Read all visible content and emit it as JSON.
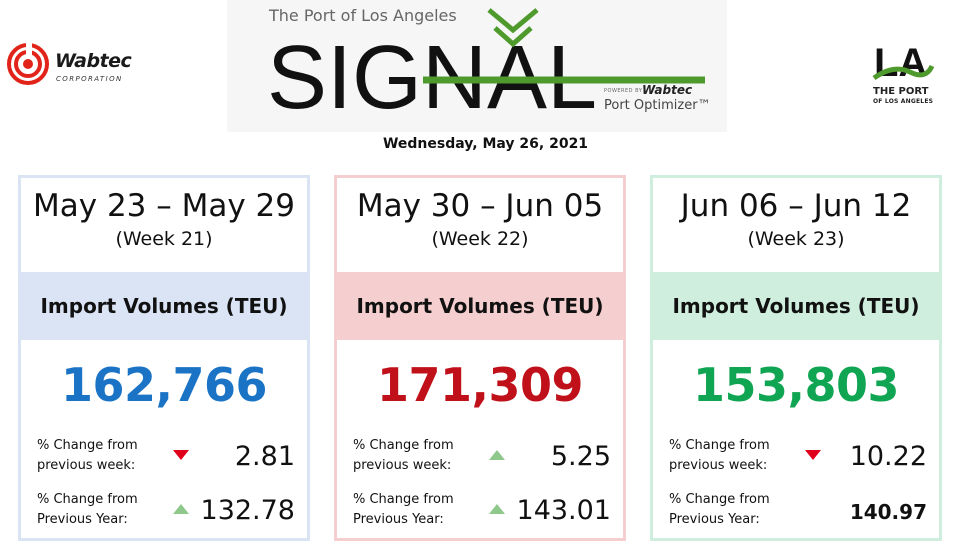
{
  "header": {
    "left_logo": {
      "name": "Wabtec",
      "subtitle": "CORPORATION"
    },
    "banner": {
      "kicker": "The Port of Los Angeles",
      "title": "SIGNAL",
      "powered_by": "POWERED BY",
      "powered_brand": "Wabtec",
      "product": "Port Optimizer™"
    },
    "right_logo": {
      "letters": "LA",
      "line1": "THE PORT",
      "line2": "OF LOS ANGELES"
    },
    "date": "Wednesday, May 26, 2021"
  },
  "colors": {
    "card_1_accent": "#dbe4f5",
    "card_2_accent": "#f5cfcf",
    "card_3_accent": "#cfeedd",
    "value_blue": "#1a73c5",
    "value_red": "#c0101a",
    "value_green": "#10a552",
    "arrow_down": "#e0001b",
    "arrow_up": "#8fc88b",
    "signal_green": "#4f9a2c"
  },
  "cards": [
    {
      "period": "May 23 – May 29",
      "week": "(Week 21)",
      "metric_label": "Import Volumes (TEU)",
      "value": "162,766",
      "value_color": "#1a73c5",
      "week_change": {
        "label_line1": "% Change from",
        "label_line2": "previous week:",
        "direction": "down",
        "value": "2.81"
      },
      "year_change": {
        "label_line1": "% Change from",
        "label_line2": "Previous Year:",
        "direction": "up",
        "value": "132.78"
      }
    },
    {
      "period": "May 30 – Jun 05",
      "week": "(Week 22)",
      "metric_label": "Import Volumes (TEU)",
      "value": "171,309",
      "value_color": "#c0101a",
      "week_change": {
        "label_line1": "% Change from",
        "label_line2": "previous week:",
        "direction": "up",
        "value": "5.25"
      },
      "year_change": {
        "label_line1": "% Change from",
        "label_line2": "Previous Year:",
        "direction": "up",
        "value": "143.01"
      }
    },
    {
      "period": "Jun 06 – Jun 12",
      "week": "(Week 23)",
      "metric_label": "Import Volumes (TEU)",
      "value": "153,803",
      "value_color": "#10a552",
      "week_change": {
        "label_line1": "% Change from",
        "label_line2": "previous week:",
        "direction": "down",
        "value": "10.22"
      },
      "year_change": {
        "label_line1": "% Change from",
        "label_line2": "Previous Year:",
        "direction": "none",
        "value": "140.97"
      }
    }
  ]
}
